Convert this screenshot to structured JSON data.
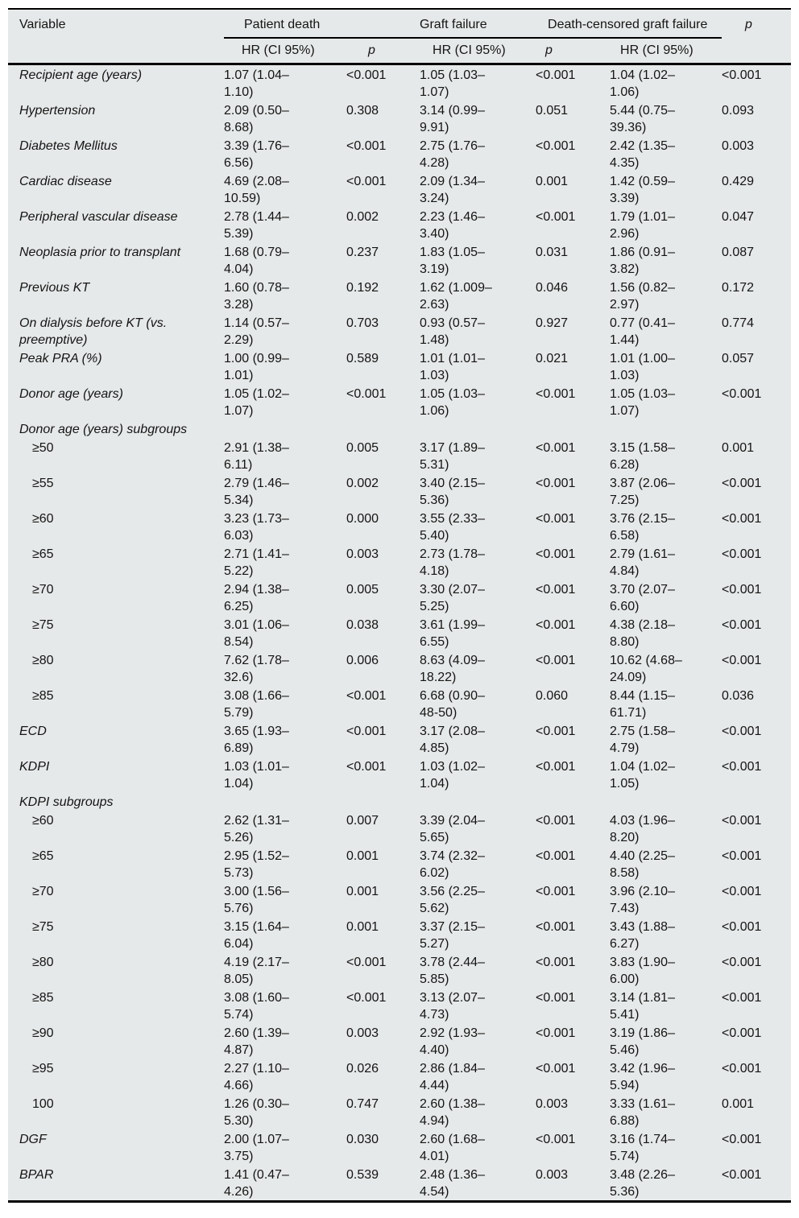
{
  "table": {
    "header": {
      "variable": "Variable",
      "patient_death": "Patient death",
      "graft_failure": "Graft failure",
      "death_censored": "Death-censored graft failure",
      "hr_ci": "HR (CI 95%)",
      "p": "p"
    },
    "colors": {
      "sheet_bg": "#e6e9e9",
      "rule": "#000000",
      "text": "#141414"
    },
    "rows": [
      {
        "style": "var",
        "v": "Recipient age (years)",
        "c": [
          "1.07 (1.04–\n1.10)",
          "<0.001",
          "1.05 (1.03–\n1.07)",
          "<0.001",
          "1.04 (1.02–\n1.06)",
          "<0.001"
        ]
      },
      {
        "style": "var",
        "v": "Hypertension",
        "c": [
          "2.09 (0.50–\n8.68)",
          "0.308",
          "3.14 (0.99–\n9.91)",
          "0.051",
          "5.44 (0.75–\n39.36)",
          "0.093"
        ]
      },
      {
        "style": "var",
        "v": "Diabetes Mellitus",
        "c": [
          "3.39 (1.76–\n6.56)",
          "<0.001",
          "2.75 (1.76–\n4.28)",
          "<0.001",
          "2.42 (1.35–\n4.35)",
          "0.003"
        ]
      },
      {
        "style": "var",
        "v": "Cardiac disease",
        "c": [
          "4.69 (2.08–\n10.59)",
          "<0.001",
          "2.09 (1.34–\n3.24)",
          "0.001",
          "1.42 (0.59–\n3.39)",
          "0.429"
        ]
      },
      {
        "style": "var",
        "v": "Peripheral vascular disease",
        "c": [
          "2.78 (1.44–\n5.39)",
          "0.002",
          "2.23 (1.46–\n3.40)",
          "<0.001",
          "1.79 (1.01–\n2.96)",
          "0.047"
        ]
      },
      {
        "style": "var",
        "v": "Neoplasia prior to transplant",
        "c": [
          "1.68 (0.79–\n4.04)",
          "0.237",
          "1.83 (1.05–\n3.19)",
          "0.031",
          "1.86 (0.91–\n3.82)",
          "0.087"
        ]
      },
      {
        "style": "var",
        "v": "Previous KT",
        "c": [
          "1.60 (0.78–\n3.28)",
          "0.192",
          "1.62 (1.009–\n2.63)",
          "0.046",
          "1.56 (0.82–\n2.97)",
          "0.172"
        ]
      },
      {
        "style": "var",
        "v": "On dialysis before KT (vs.\npreemptive)",
        "c": [
          "1.14 (0.57–\n2.29)",
          "0.703",
          "0.93 (0.57–\n1.48)",
          "0.927",
          "0.77 (0.41–\n1.44)",
          "0.774"
        ]
      },
      {
        "style": "var",
        "v": "Peak PRA (%)",
        "c": [
          "1.00 (0.99–\n1.01)",
          "0.589",
          "1.01 (1.01–\n1.03)",
          "0.021",
          "1.01 (1.00–\n1.03)",
          "0.057"
        ]
      },
      {
        "style": "var",
        "v": "Donor age (years)",
        "c": [
          "1.05 (1.02–\n1.07)",
          "<0.001",
          "1.05 (1.03–\n1.06)",
          "<0.001",
          "1.05 (1.03–\n1.07)",
          "<0.001"
        ]
      },
      {
        "style": "section",
        "v": "Donor age (years) subgroups",
        "c": [
          "",
          "",
          "",
          "",
          "",
          ""
        ]
      },
      {
        "style": "sub",
        "v": "≥50",
        "c": [
          "2.91 (1.38–\n6.11)",
          "0.005",
          "3.17 (1.89–\n5.31)",
          "<0.001",
          "3.15 (1.58–\n6.28)",
          "0.001"
        ]
      },
      {
        "style": "sub",
        "v": "≥55",
        "c": [
          "2.79 (1.46–\n5.34)",
          "0.002",
          "3.40 (2.15–\n5.36)",
          "<0.001",
          "3.87 (2.06–\n7.25)",
          "<0.001"
        ]
      },
      {
        "style": "sub",
        "v": "≥60",
        "c": [
          "3.23 (1.73–\n6.03)",
          "0.000",
          "3.55 (2.33–\n5.40)",
          "<0.001",
          "3.76 (2.15–\n6.58)",
          "<0.001"
        ]
      },
      {
        "style": "sub",
        "v": "≥65",
        "c": [
          "2.71 (1.41–\n5.22)",
          "0.003",
          "2.73 (1.78–\n4.18)",
          "<0.001",
          "2.79 (1.61–\n4.84)",
          "<0.001"
        ]
      },
      {
        "style": "sub",
        "v": "≥70",
        "c": [
          "2.94 (1.38–\n6.25)",
          "0.005",
          "3.30 (2.07–\n5.25)",
          "<0.001",
          "3.70 (2.07–\n6.60)",
          "<0.001"
        ]
      },
      {
        "style": "sub",
        "v": "≥75",
        "c": [
          "3.01 (1.06–\n8.54)",
          "0.038",
          "3.61 (1.99–\n6.55)",
          "<0.001",
          "4.38 (2.18–\n8.80)",
          "<0.001"
        ]
      },
      {
        "style": "sub",
        "v": "≥80",
        "c": [
          "7.62 (1.78–\n32.6)",
          "0.006",
          "8.63 (4.09–\n18.22)",
          "<0.001",
          "10.62 (4.68–\n24.09)",
          "<0.001"
        ]
      },
      {
        "style": "sub",
        "v": "≥85",
        "c": [
          "3.08 (1.66–\n5.79)",
          "<0.001",
          "6.68 (0.90–\n48-50)",
          "0.060",
          "8.44 (1.15–\n61.71)",
          "0.036"
        ]
      },
      {
        "style": "var",
        "v": "ECD",
        "c": [
          "3.65 (1.93–\n6.89)",
          "<0.001",
          "3.17 (2.08–\n4.85)",
          "<0.001",
          "2.75 (1.58–\n4.79)",
          "<0.001"
        ]
      },
      {
        "style": "var",
        "v": "KDPI",
        "c": [
          "1.03 (1.01–\n1.04)",
          "<0.001",
          "1.03 (1.02–\n1.04)",
          "<0.001",
          "1.04 (1.02–\n1.05)",
          "<0.001"
        ]
      },
      {
        "style": "section",
        "v": "KDPI subgroups",
        "c": [
          "",
          "",
          "",
          "",
          "",
          ""
        ]
      },
      {
        "style": "sub",
        "v": "≥60",
        "c": [
          "2.62 (1.31–\n5.26)",
          "0.007",
          "3.39 (2.04–\n5.65)",
          "<0.001",
          "4.03 (1.96–\n8.20)",
          "<0.001"
        ]
      },
      {
        "style": "sub",
        "v": "≥65",
        "c": [
          "2.95 (1.52–\n5.73)",
          "0.001",
          "3.74 (2.32–\n6.02)",
          "<0.001",
          "4.40 (2.25–\n8.58)",
          "<0.001"
        ]
      },
      {
        "style": "sub",
        "v": "≥70",
        "c": [
          "3.00 (1.56–\n5.76)",
          "0.001",
          "3.56 (2.25–\n5.62)",
          "<0.001",
          "3.96 (2.10–\n7.43)",
          "<0.001"
        ]
      },
      {
        "style": "sub",
        "v": "≥75",
        "c": [
          "3.15 (1.64–\n6.04)",
          "0.001",
          "3.37 (2.15–\n5.27)",
          "<0.001",
          "3.43 (1.88–\n6.27)",
          "<0.001"
        ]
      },
      {
        "style": "sub",
        "v": "≥80",
        "c": [
          "4.19 (2.17–\n8.05)",
          "<0.001",
          "3.78 (2.44–\n5.85)",
          "<0.001",
          "3.83 (1.90–\n6.00)",
          "<0.001"
        ]
      },
      {
        "style": "sub",
        "v": "≥85",
        "c": [
          "3.08 (1.60–\n5.74)",
          "<0.001",
          "3.13 (2.07–\n4.73)",
          "<0.001",
          "3.14 (1.81–\n5.41)",
          "<0.001"
        ]
      },
      {
        "style": "sub",
        "v": "≥90",
        "c": [
          "2.60 (1.39–\n4.87)",
          "0.003",
          "2.92 (1.93–\n4.40)",
          "<0.001",
          "3.19 (1.86–\n5.46)",
          "<0.001"
        ]
      },
      {
        "style": "sub",
        "v": "≥95",
        "c": [
          "2.27 (1.10–\n4.66)",
          "0.026",
          "2.86 (1.84–\n4.44)",
          "<0.001",
          "3.42 (1.96–\n5.94)",
          "<0.001"
        ]
      },
      {
        "style": "sub",
        "v": "100",
        "c": [
          "1.26 (0.30–\n5.30)",
          "0.747",
          "2.60 (1.38–\n4.94)",
          "0.003",
          "3.33 (1.61–\n6.88)",
          "0.001"
        ]
      },
      {
        "style": "var",
        "v": "DGF",
        "c": [
          "2.00 (1.07–\n3.75)",
          "0.030",
          "2.60 (1.68–\n4.01)",
          "<0.001",
          "3.16 (1.74–\n5.74)",
          "<0.001"
        ]
      },
      {
        "style": "var",
        "v": "BPAR",
        "c": [
          "1.41 (0.47–\n4.26)",
          "0.539",
          "2.48 (1.36–\n4.54)",
          "0.003",
          "3.48 (2.26–\n5.36)",
          "<0.001"
        ]
      }
    ]
  }
}
